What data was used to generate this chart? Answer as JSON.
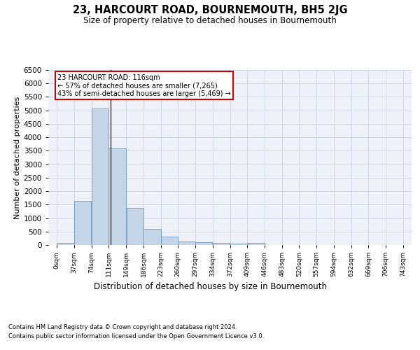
{
  "title": "23, HARCOURT ROAD, BOURNEMOUTH, BH5 2JG",
  "subtitle": "Size of property relative to detached houses in Bournemouth",
  "xlabel": "Distribution of detached houses by size in Bournemouth",
  "ylabel": "Number of detached properties",
  "footer_line1": "Contains HM Land Registry data © Crown copyright and database right 2024.",
  "footer_line2": "Contains public sector information licensed under the Open Government Licence v3.0.",
  "bin_labels": [
    "0sqm",
    "37sqm",
    "74sqm",
    "111sqm",
    "149sqm",
    "186sqm",
    "223sqm",
    "260sqm",
    "297sqm",
    "334sqm",
    "372sqm",
    "409sqm",
    "446sqm",
    "483sqm",
    "520sqm",
    "557sqm",
    "594sqm",
    "632sqm",
    "669sqm",
    "706sqm",
    "743sqm"
  ],
  "bin_edges": [
    0,
    37,
    74,
    111,
    149,
    186,
    223,
    260,
    297,
    334,
    372,
    409,
    446,
    483,
    520,
    557,
    594,
    632,
    669,
    706,
    743
  ],
  "bar_values": [
    75,
    1630,
    5060,
    3580,
    1390,
    590,
    300,
    130,
    100,
    75,
    55,
    75,
    0,
    0,
    0,
    0,
    0,
    0,
    0,
    0
  ],
  "bar_color": "#c5d5e8",
  "bar_edge_color": "#5b8db8",
  "grid_color": "#d0d8e8",
  "background_color": "#eef2f8",
  "property_size": 116,
  "vline_color": "#333333",
  "annotation_line1": "23 HARCOURT ROAD: 116sqm",
  "annotation_line2": "← 57% of detached houses are smaller (7,265)",
  "annotation_line3": "43% of semi-detached houses are larger (5,469) →",
  "annotation_box_color": "#cc0000",
  "ylim": [
    0,
    6500
  ],
  "yticks": [
    0,
    500,
    1000,
    1500,
    2000,
    2500,
    3000,
    3500,
    4000,
    4500,
    5000,
    5500,
    6000,
    6500
  ]
}
